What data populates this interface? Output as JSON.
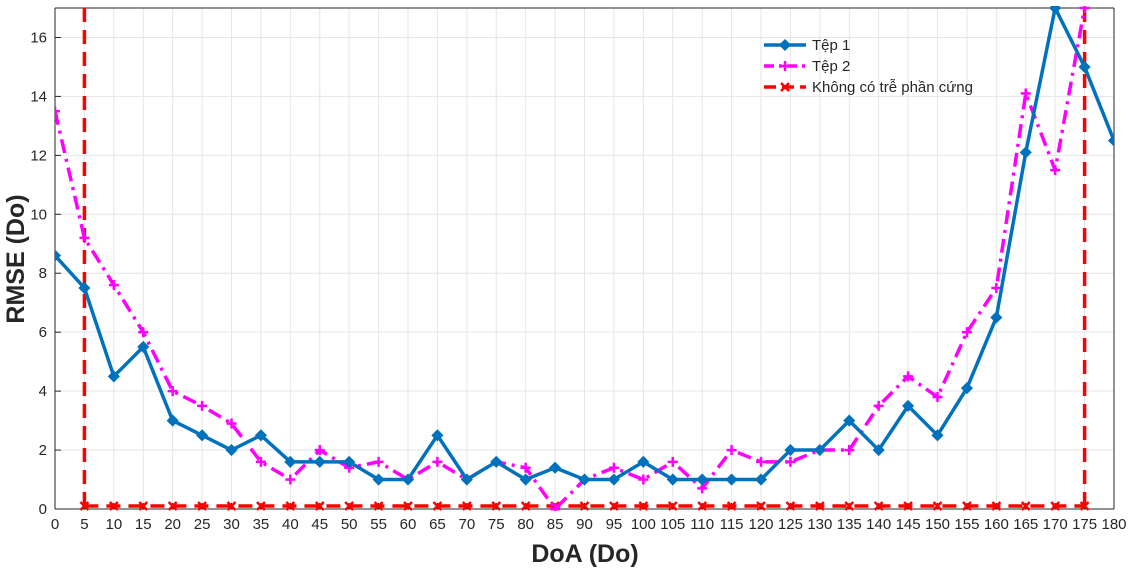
{
  "chart_data": {
    "type": "line",
    "xlabel": "DoA (Do)",
    "ylabel": "RMSE (Do)",
    "xlim": [
      0,
      180
    ],
    "ylim": [
      0,
      17
    ],
    "xticks": [
      0,
      5,
      10,
      15,
      20,
      25,
      30,
      35,
      40,
      45,
      50,
      55,
      60,
      65,
      70,
      75,
      80,
      85,
      90,
      95,
      100,
      105,
      110,
      115,
      120,
      125,
      130,
      135,
      140,
      145,
      150,
      155,
      160,
      165,
      170,
      175,
      180
    ],
    "yticks": [
      0,
      2,
      4,
      6,
      8,
      10,
      12,
      14,
      16
    ],
    "grid": true,
    "legend_position": "top-right",
    "series": [
      {
        "name": "Tệp 1",
        "color": "#0072BD",
        "line_style": "solid",
        "marker": "diamond",
        "x": [
          0,
          5,
          10,
          15,
          20,
          25,
          30,
          35,
          40,
          45,
          50,
          55,
          60,
          65,
          70,
          75,
          80,
          85,
          90,
          95,
          100,
          105,
          110,
          115,
          120,
          125,
          130,
          135,
          140,
          145,
          150,
          155,
          160,
          165,
          170,
          175,
          180
        ],
        "y": [
          8.6,
          7.5,
          4.5,
          5.5,
          3.0,
          2.5,
          2.0,
          2.5,
          1.6,
          1.6,
          1.6,
          1.0,
          1.0,
          2.5,
          1.0,
          1.6,
          1.0,
          1.4,
          1.0,
          1.0,
          1.6,
          1.0,
          1.0,
          1.0,
          1.0,
          2.0,
          2.0,
          3.0,
          2.0,
          3.5,
          2.5,
          4.1,
          6.5,
          12.1,
          17.0,
          15.0,
          12.5
        ]
      },
      {
        "name": "Tệp 2",
        "color": "#FF00FF",
        "line_style": "dashdot",
        "marker": "plus",
        "x": [
          0,
          5,
          10,
          15,
          20,
          25,
          30,
          35,
          40,
          45,
          50,
          55,
          60,
          65,
          70,
          75,
          80,
          85,
          90,
          95,
          100,
          105,
          110,
          115,
          120,
          125,
          130,
          135,
          140,
          145,
          150,
          155,
          160,
          165,
          170,
          175
        ],
        "y": [
          13.5,
          9.2,
          7.6,
          6.0,
          4.0,
          3.5,
          2.9,
          1.6,
          1.0,
          2.0,
          1.4,
          1.6,
          1.0,
          1.6,
          1.0,
          1.6,
          1.4,
          0.0,
          1.0,
          1.4,
          1.0,
          1.6,
          0.7,
          2.0,
          1.6,
          1.6,
          2.0,
          2.0,
          3.5,
          4.5,
          3.8,
          6.0,
          7.5,
          14.1,
          11.5,
          17.0
        ]
      },
      {
        "name": "Không có trễ phần cứng",
        "color": "#FF0000",
        "line_style": "dashed",
        "marker": "x",
        "x": [
          5,
          10,
          15,
          20,
          25,
          30,
          35,
          40,
          45,
          50,
          55,
          60,
          65,
          70,
          75,
          80,
          85,
          90,
          95,
          100,
          105,
          110,
          115,
          120,
          125,
          130,
          135,
          140,
          145,
          150,
          155,
          160,
          165,
          170,
          175
        ],
        "y": [
          0.1,
          0.1,
          0.1,
          0.1,
          0.1,
          0.1,
          0.1,
          0.1,
          0.1,
          0.1,
          0.1,
          0.1,
          0.1,
          0.1,
          0.1,
          0.1,
          0.1,
          0.1,
          0.1,
          0.1,
          0.1,
          0.1,
          0.1,
          0.1,
          0.1,
          0.1,
          0.1,
          0.1,
          0.1,
          0.1,
          0.1,
          0.1,
          0.1,
          0.1,
          0.1
        ],
        "vertical_lines_x": [
          5,
          175
        ]
      }
    ]
  }
}
